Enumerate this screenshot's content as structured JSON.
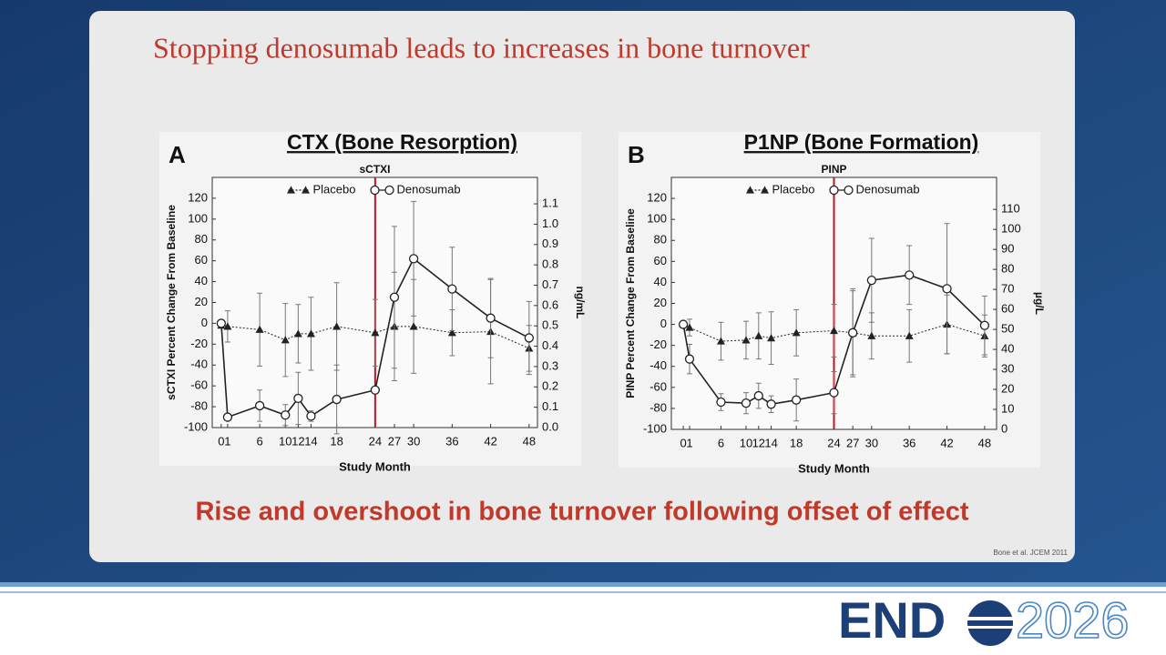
{
  "slide_title": "Stopping denosumab leads to increases in bone turnover",
  "takeaway": "Rise and overshoot in bone turnover following offset of effect",
  "citation": "Bone et al. JCEM 2011",
  "logo": {
    "left": "END",
    "right": "2026"
  },
  "chart_data": [
    {
      "type": "line",
      "panel": "A",
      "heading": "CTX (Bone Resorption)",
      "title": "sCTXI",
      "xlabel": "Study Month",
      "ylabel": "sCTXI Percent Change From Baseline",
      "y2label": "ng/mL",
      "x": [
        0,
        1,
        6,
        10,
        12,
        14,
        18,
        24,
        27,
        30,
        36,
        42,
        48
      ],
      "xticks": [
        0,
        1,
        6,
        10,
        12,
        14,
        18,
        24,
        27,
        30,
        36,
        42,
        48
      ],
      "xlim": [
        -1.4,
        49.3
      ],
      "ylim": [
        -100,
        140
      ],
      "yticks": [
        -100,
        -80,
        -60,
        -40,
        -20,
        0,
        20,
        40,
        60,
        80,
        100,
        120
      ],
      "y2lim": [
        0,
        1.23
      ],
      "y2ticks": [
        {
          "value": 0,
          "label": "0.0"
        },
        0.1,
        0.2,
        0.3,
        0.4,
        0.5,
        0.6,
        0.7,
        0.8,
        0.9,
        {
          "value": 1,
          "label": "1.0"
        },
        1.1
      ],
      "vline": 24,
      "vline_color": "#c0151c",
      "legend": "top",
      "series": [
        {
          "name": "Placebo",
          "color": "#222222",
          "marker": "triangle",
          "dash": true,
          "values": [
            -2,
            -3,
            -6,
            -16,
            -10,
            -10,
            -3,
            -9,
            -3,
            -3,
            -9,
            -8,
            -24
          ],
          "errors": [
            0,
            15,
            35,
            35,
            28,
            35,
            42,
            32,
            52,
            45,
            22,
            50,
            22
          ]
        },
        {
          "name": "Denosumab",
          "color": "#222222",
          "marker": "circle",
          "dash": false,
          "values": [
            0,
            -90,
            -79,
            -88,
            -72,
            -89,
            -73,
            -64,
            25,
            62,
            33,
            5,
            -14
          ],
          "errors": [
            0,
            3,
            15,
            10,
            25,
            5,
            33,
            0,
            68,
            55,
            40,
            38,
            35
          ]
        }
      ]
    },
    {
      "type": "line",
      "panel": "B",
      "heading": "P1NP (Bone Formation)",
      "title": "PINP",
      "xlabel": "Study Month",
      "ylabel": "PINP Percent Change From Baseline",
      "y2label": "µg/L",
      "x": [
        0,
        1,
        6,
        10,
        12,
        14,
        18,
        24,
        27,
        30,
        36,
        42,
        48
      ],
      "xticks": [
        0,
        1,
        6,
        10,
        12,
        14,
        18,
        24,
        27,
        30,
        36,
        42,
        48
      ],
      "xlim": [
        -1.9,
        49.9
      ],
      "ylim": [
        -100,
        140
      ],
      "yticks": [
        -100,
        -80,
        -60,
        -40,
        -20,
        0,
        20,
        40,
        60,
        80,
        100,
        120
      ],
      "y2lim": [
        0,
        126
      ],
      "y2ticks": [
        0,
        10,
        20,
        30,
        40,
        50,
        60,
        70,
        80,
        90,
        100,
        110
      ],
      "vline": 24,
      "vline_color": "#c0151c",
      "legend": "top",
      "series": [
        {
          "name": "Placebo",
          "color": "#222222",
          "marker": "triangle",
          "dash": true,
          "values": [
            0,
            -3,
            -16,
            -15,
            -11,
            -13,
            -8,
            -6,
            -8,
            -11,
            -11,
            0,
            -11
          ],
          "errors": [
            0,
            8,
            18,
            18,
            22,
            25,
            22,
            25,
            40,
            22,
            25,
            28,
            20
          ]
        },
        {
          "name": "Denosumab",
          "color": "#222222",
          "marker": "circle",
          "dash": false,
          "values": [
            0,
            -33,
            -74,
            -75,
            -68,
            -76,
            -72,
            -65,
            -8,
            42,
            47,
            34,
            -1
          ],
          "errors": [
            0,
            14,
            8,
            10,
            12,
            8,
            20,
            20,
            42,
            40,
            28,
            62,
            28
          ]
        }
      ]
    }
  ]
}
